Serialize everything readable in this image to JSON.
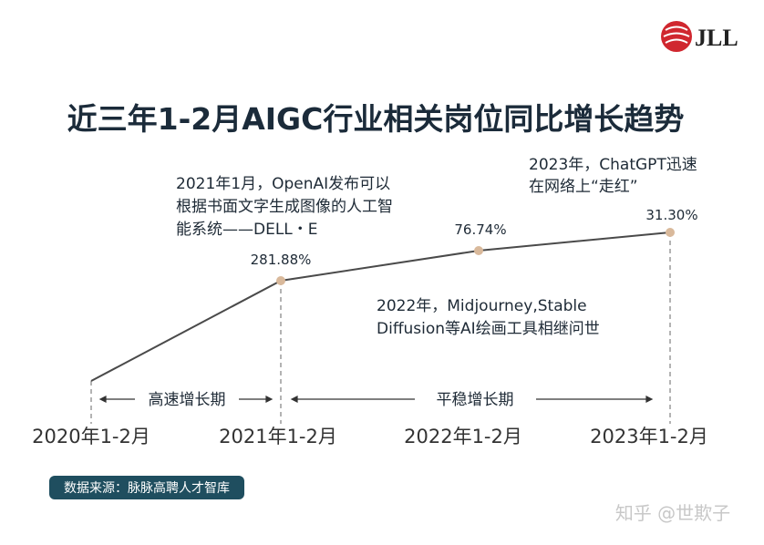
{
  "logo": "JLL",
  "header": {
    "title": "近三年1-2月AIGC行业相关岗位同比增长趋势"
  },
  "points": [
    {
      "label": null
    },
    {
      "label": "281.88%"
    },
    {
      "label": "76.74%"
    },
    {
      "label": "31.30%"
    }
  ],
  "annotations": [
    {
      "lines": [
        "2021年1月，OpenAI发布可以",
        "根据书面文字生成图像的人工智",
        "能系统——DELL・E"
      ]
    },
    {
      "lines": [
        "2023年，ChatGPT迅速",
        "在网络上“走红”"
      ]
    },
    {
      "lines": [
        "2022年，Midjourney,Stable",
        "Diffusion等AI绘画工具相继问世"
      ]
    }
  ],
  "periods": [
    "高速增长期",
    "平稳增长期"
  ],
  "x_labels": [
    "2020年1-2月",
    "2021年1-2月",
    "2022年1-2月",
    "2023年1-2月"
  ],
  "source": "数据来源：脉脉高聘人才智库",
  "watermark": "知乎 @世欺子"
}
